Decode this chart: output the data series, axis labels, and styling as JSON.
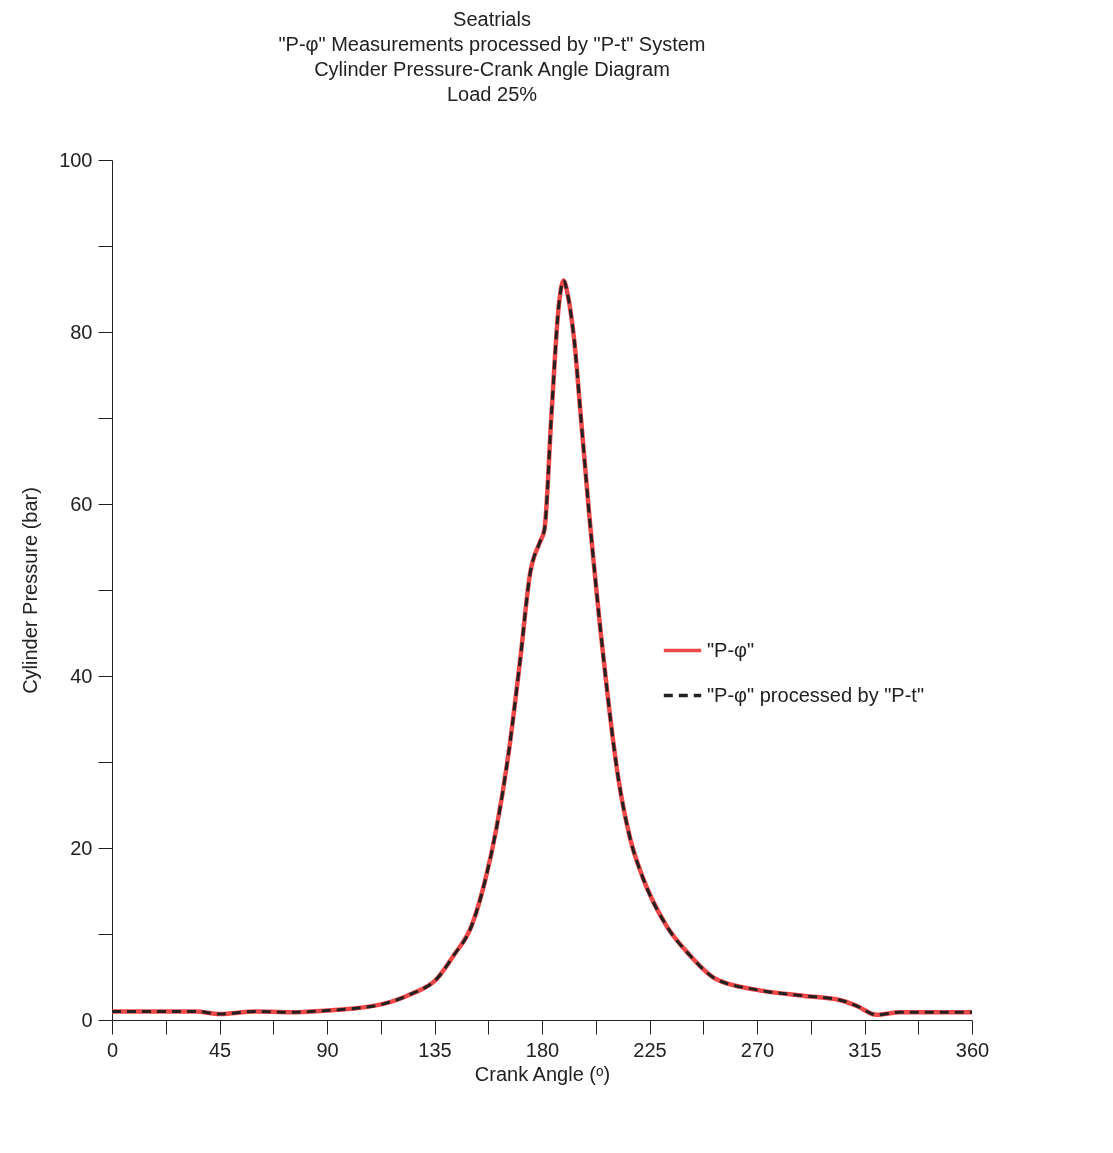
{
  "chart_data": {
    "type": "line",
    "title": "Seatrials\n\"P-φ\" Measurements processed by \"P-t\" System\nCylinder Pressure-Crank Angle Diagram\nLoad 25%",
    "xlabel": "Crank Angle (ᵒ)",
    "ylabel": "Cylinder Pressure (bar)",
    "xlim": [
      0,
      360
    ],
    "ylim": [
      0,
      100
    ],
    "xticks": [
      0,
      {
        "value": 22.5,
        "label": null
      },
      45,
      {
        "value": 67.5,
        "label": null
      },
      90,
      {
        "value": 112.5,
        "label": null
      },
      135,
      {
        "value": 157.5,
        "label": null
      },
      180,
      {
        "value": 202.5,
        "label": null
      },
      225,
      {
        "value": 247.5,
        "label": null
      },
      270,
      {
        "value": 292.5,
        "label": null
      },
      315,
      {
        "value": 337.5,
        "label": null
      },
      360
    ],
    "yticks": [
      0,
      {
        "value": 10,
        "label": null
      },
      20,
      {
        "value": 30,
        "label": null
      },
      40,
      {
        "value": 50,
        "label": null
      },
      60,
      {
        "value": 70,
        "label": null
      },
      80,
      {
        "value": 90,
        "label": null
      },
      100
    ],
    "x": [
      0,
      20,
      35,
      45,
      60,
      75,
      90,
      100,
      114,
      125,
      136,
      143,
      150.6,
      156,
      161,
      166,
      171,
      175,
      179,
      181,
      184,
      187,
      189,
      191,
      193.5,
      196,
      199.6,
      205.7,
      212,
      217,
      222,
      232,
      242,
      252.6,
      270,
      290,
      305,
      312,
      320,
      330,
      345,
      360
    ],
    "grid": false,
    "legend": "right",
    "marker": "none",
    "series": [
      {
        "name": "\"P-φ\"",
        "color": "#f04848",
        "line_style": "solid",
        "values": [
          1.0,
          1.0,
          1.0,
          0.7,
          1.0,
          0.9,
          1.1,
          1.3,
          1.9,
          3.0,
          4.8,
          7.5,
          11,
          16,
          22.4,
          31,
          42.2,
          51.9,
          55.5,
          57,
          70.6,
          83,
          86,
          84,
          79,
          71,
          59.3,
          42.2,
          28,
          21,
          16.7,
          11,
          7.5,
          4.8,
          3.5,
          2.8,
          2.3,
          1.6,
          0.6,
          0.9,
          0.9,
          0.9
        ]
      },
      {
        "name": "\"P-φ\" processed by \"P-t\"",
        "color": "#222222",
        "line_style": "dashed",
        "values": [
          1.0,
          1.0,
          1.0,
          0.7,
          1.0,
          0.9,
          1.1,
          1.3,
          1.9,
          3.0,
          4.8,
          7.5,
          11,
          16,
          22.4,
          31,
          42.2,
          51.9,
          55.5,
          57,
          70.6,
          83,
          86,
          84,
          79,
          71,
          59.3,
          42.2,
          28,
          21,
          16.7,
          11,
          7.5,
          4.8,
          3.5,
          2.8,
          2.3,
          1.6,
          0.6,
          0.9,
          0.9,
          0.9
        ]
      }
    ]
  }
}
